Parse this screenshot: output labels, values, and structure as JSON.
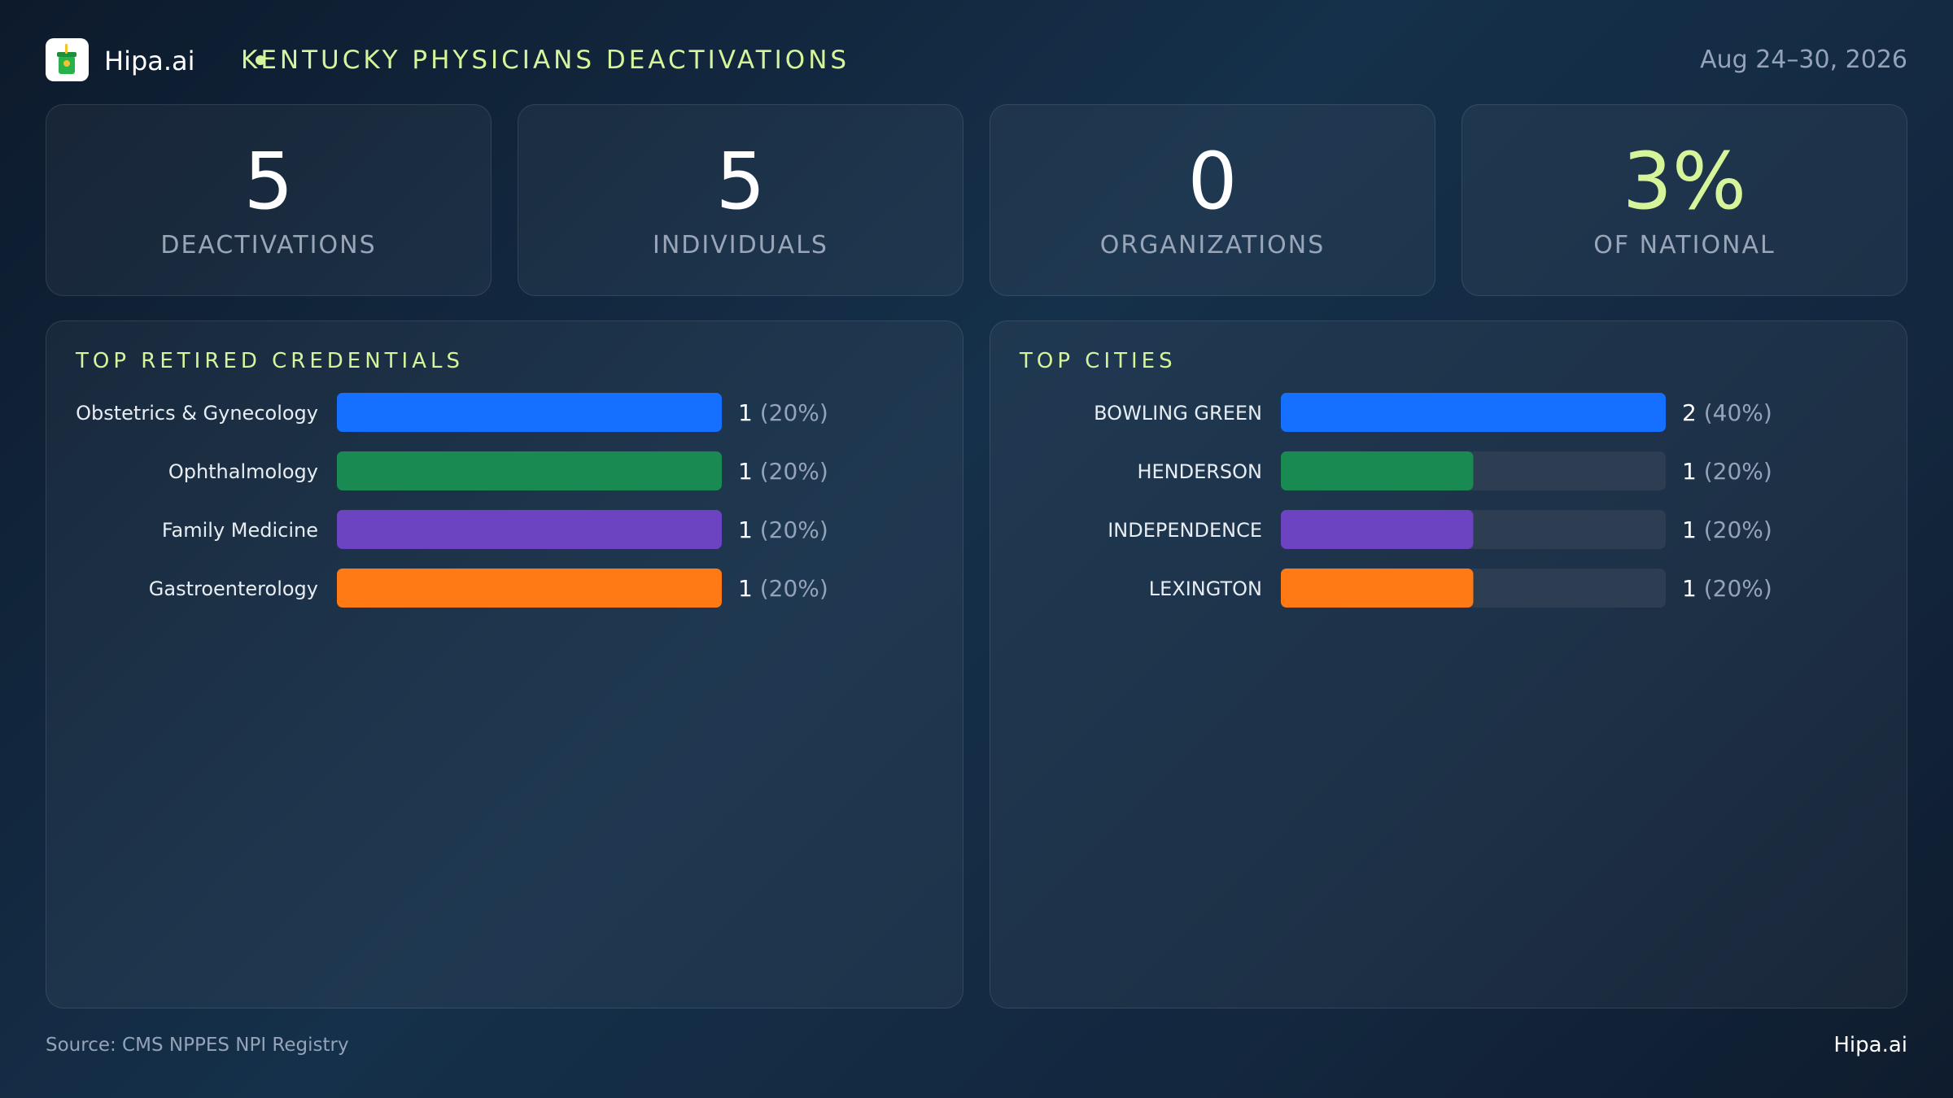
{
  "header": {
    "brand": "Hipa.ai",
    "title": "KENTUCKY PHYSICIANS DEACTIVATIONS",
    "date_range": "Aug 24–30, 2026"
  },
  "stats": [
    {
      "value": "5",
      "label": "DEACTIVATIONS"
    },
    {
      "value": "5",
      "label": "INDIVIDUALS"
    },
    {
      "value": "0",
      "label": "ORGANIZATIONS"
    },
    {
      "value": "3%",
      "label": "OF NATIONAL"
    }
  ],
  "colors": {
    "accent": "#d6f59a",
    "series": [
      "#1570ff",
      "#1a8a53",
      "#6c44c2",
      "#ff7a14"
    ],
    "track": "#2d3d52"
  },
  "chart_data": [
    {
      "type": "bar",
      "title": "TOP RETIRED CREDENTIALS",
      "categories": [
        "Obstetrics & Gynecology",
        "Ophthalmology",
        "Family Medicine",
        "Gastroenterology"
      ],
      "values": [
        1,
        1,
        1,
        1
      ],
      "value_labels": [
        "1",
        "1",
        "1",
        "1"
      ],
      "percent_labels": [
        "(20%)",
        "(20%)",
        "(20%)",
        "(20%)"
      ],
      "xlim": [
        0,
        1
      ]
    },
    {
      "type": "bar",
      "title": "TOP CITIES",
      "categories": [
        "BOWLING GREEN",
        "HENDERSON",
        "INDEPENDENCE",
        "LEXINGTON"
      ],
      "values": [
        2,
        1,
        1,
        1
      ],
      "value_labels": [
        "2",
        "1",
        "1",
        "1"
      ],
      "percent_labels": [
        "(40%)",
        "(20%)",
        "(20%)",
        "(20%)"
      ],
      "xlim": [
        0,
        2
      ]
    }
  ],
  "footer": {
    "source": "Source: CMS NPPES NPI Registry",
    "brand": "Hipa.ai"
  }
}
